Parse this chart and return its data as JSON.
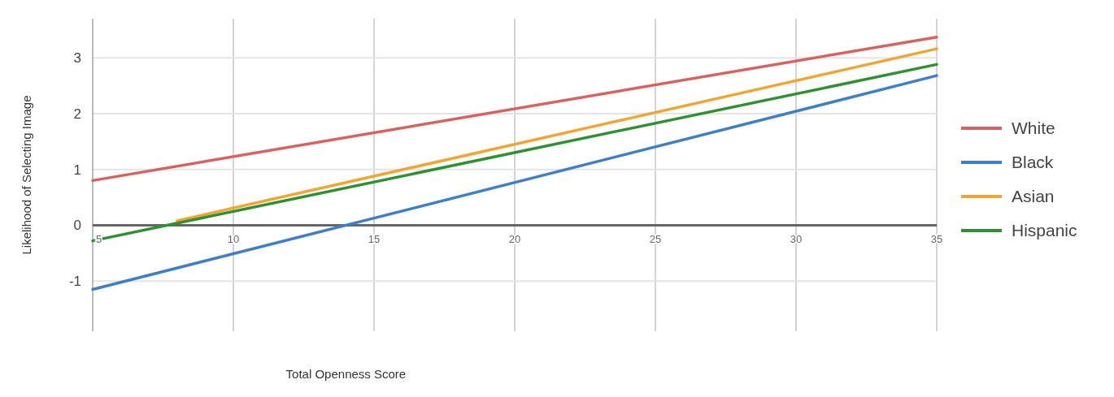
{
  "chart_data": {
    "type": "line",
    "xlabel": "Total Openness Score",
    "ylabel": "Likelihood of Selecting Image",
    "xlim": [
      5,
      35
    ],
    "xticks": [
      5,
      10,
      15,
      20,
      25,
      30,
      35
    ],
    "ylim": [
      -1.9,
      3.7
    ],
    "yticks": [
      -1,
      0,
      1,
      2,
      3
    ],
    "grid": true,
    "legend": "right",
    "marker": "none",
    "line_style": "solid",
    "series": [
      {
        "name": "White",
        "color": "#d9625f",
        "x": [
          5,
          35
        ],
        "values": [
          0.8,
          3.37
        ]
      },
      {
        "name": "Black",
        "color": "#3d7fc9",
        "x": [
          5,
          35
        ],
        "values": [
          -1.15,
          2.68
        ]
      },
      {
        "name": "Asian",
        "color": "#f2a531",
        "x": [
          8,
          35
        ],
        "values": [
          0.08,
          3.16
        ]
      },
      {
        "name": "Hispanic",
        "color": "#2e9132",
        "x": [
          5,
          35
        ],
        "values": [
          -0.28,
          2.88
        ]
      }
    ]
  }
}
